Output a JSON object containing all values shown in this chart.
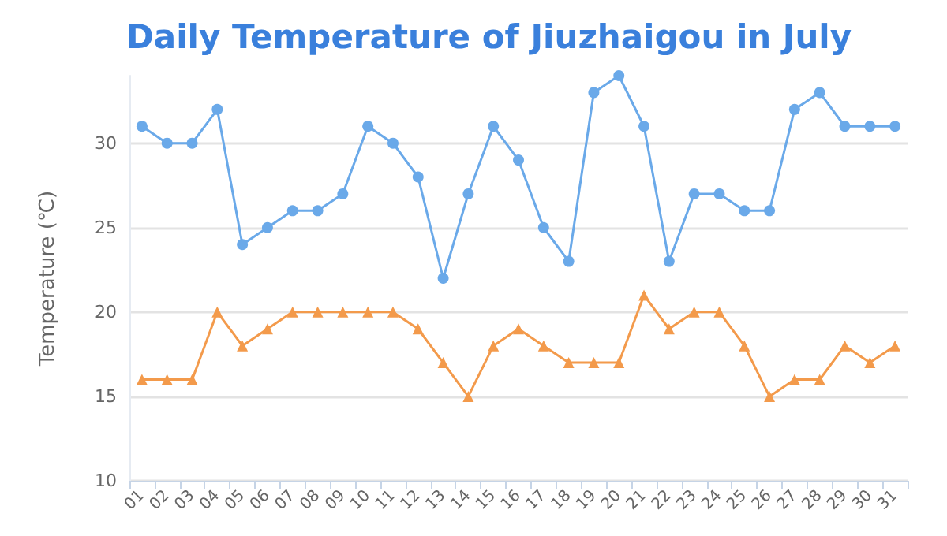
{
  "chart_data": {
    "type": "line",
    "title": "Daily Temperature of Jiuzhaigou in July",
    "ylabel": "Temperature (℃)",
    "categories": [
      "01",
      "02",
      "03",
      "04",
      "05",
      "06",
      "07",
      "08",
      "09",
      "10",
      "11",
      "12",
      "13",
      "14",
      "15",
      "16",
      "17",
      "18",
      "19",
      "20",
      "21",
      "22",
      "23",
      "24",
      "25",
      "26",
      "27",
      "28",
      "29",
      "30",
      "31"
    ],
    "series": [
      {
        "color": "#6aa9e9",
        "marker": "circle",
        "values": [
          31,
          30,
          30,
          32,
          24,
          25,
          26,
          26,
          27,
          31,
          30,
          28,
          22,
          27,
          31,
          29,
          25,
          23,
          33,
          34,
          31,
          23,
          27,
          27,
          26,
          26,
          32,
          33,
          31,
          31,
          31
        ]
      },
      {
        "color": "#f39a4b",
        "marker": "triangle",
        "values": [
          16,
          16,
          16,
          20,
          18,
          19,
          20,
          20,
          20,
          20,
          20,
          19,
          17,
          15,
          18,
          19,
          18,
          17,
          17,
          17,
          21,
          19,
          20,
          20,
          18,
          15,
          16,
          16,
          18,
          17,
          18
        ]
      }
    ],
    "ylim": [
      10,
      34
    ],
    "yticks": [
      10,
      15,
      20,
      25,
      30
    ],
    "grid": "y"
  }
}
